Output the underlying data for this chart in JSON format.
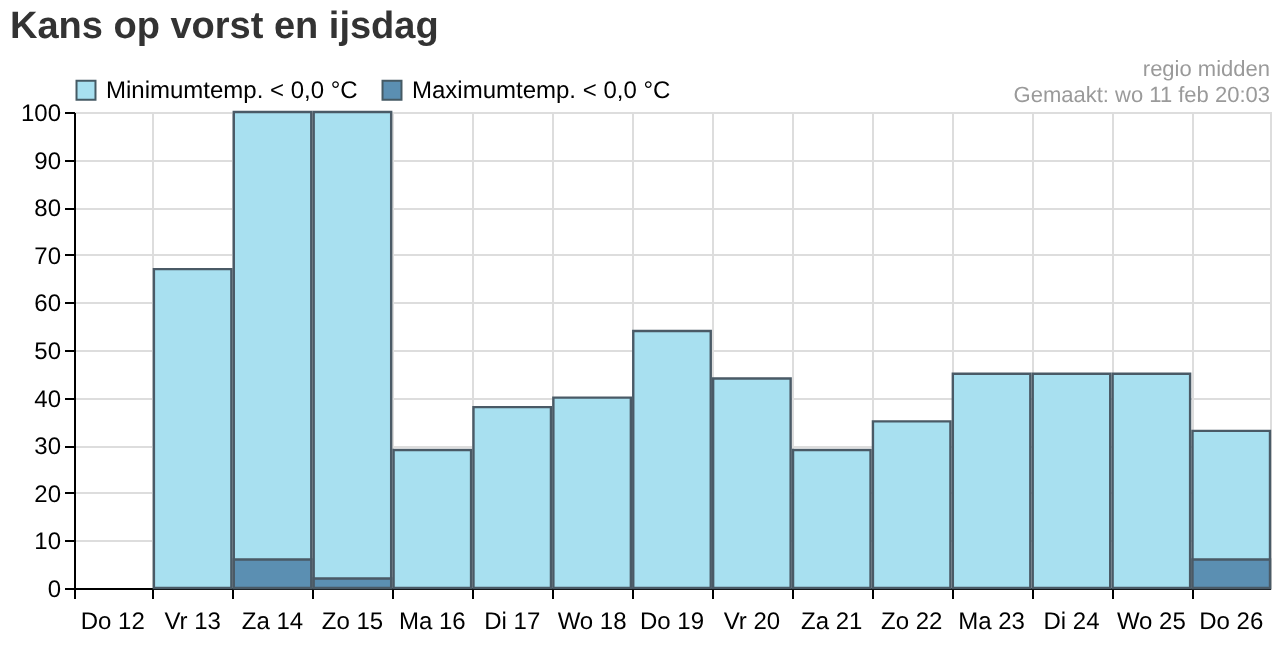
{
  "chart_data": {
    "type": "bar",
    "title": "Kans op vorst en ijsdag",
    "categories": [
      "Do 12",
      "Vr 13",
      "Za 14",
      "Zo 15",
      "Ma 16",
      "Di 17",
      "Wo 18",
      "Do 19",
      "Vr 20",
      "Za 21",
      "Zo 22",
      "Ma 23",
      "Di 24",
      "Wo 25",
      "Do 26"
    ],
    "series": [
      {
        "name": "Minimumtemp. < 0,0 °C",
        "color": "#a8e0f0",
        "values": [
          0,
          67,
          100,
          100,
          29,
          38,
          40,
          54,
          44,
          29,
          35,
          45,
          45,
          45,
          33
        ]
      },
      {
        "name": "Maximumtemp. < 0,0 °C",
        "color": "#5b8fb2",
        "values": [
          0,
          0,
          6,
          2,
          0,
          0,
          0,
          0,
          0,
          0,
          0,
          0,
          0,
          0,
          6
        ]
      }
    ],
    "ylim": [
      0,
      100
    ],
    "yticks": [
      0,
      10,
      20,
      30,
      40,
      50,
      60,
      70,
      80,
      90,
      100
    ],
    "grid": true,
    "legend": "top left",
    "annotations": [
      "regio midden",
      "Gemaakt: wo 11 feb 20:03"
    ]
  }
}
